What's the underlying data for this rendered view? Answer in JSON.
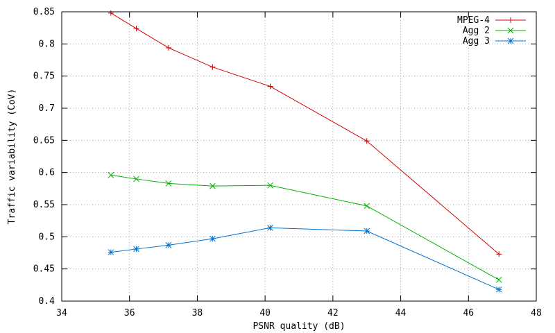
{
  "chart_data": {
    "type": "line",
    "title": "",
    "xlabel": "PSNR quality (dB)",
    "ylabel": "Traffic variability (CoV)",
    "xlim": [
      34,
      48
    ],
    "ylim": [
      0.4,
      0.85
    ],
    "xticks": [
      34,
      36,
      38,
      40,
      42,
      44,
      46,
      48
    ],
    "yticks": [
      0.4,
      0.45,
      0.5,
      0.55,
      0.6,
      0.65,
      0.7,
      0.75,
      0.8,
      0.85
    ],
    "grid": true,
    "legend_position": "top-right",
    "series": [
      {
        "name": "MPEG-4",
        "color": "#d00000",
        "marker": "plus",
        "x": [
          35.45,
          36.2,
          37.15,
          38.45,
          40.15,
          43.0,
          46.9
        ],
        "y": [
          0.848,
          0.824,
          0.794,
          0.764,
          0.734,
          0.649,
          0.473
        ]
      },
      {
        "name": "Agg 2",
        "color": "#00b000",
        "marker": "cross",
        "x": [
          35.45,
          36.2,
          37.15,
          38.45,
          40.15,
          43.0,
          46.9
        ],
        "y": [
          0.596,
          0.59,
          0.583,
          0.579,
          0.58,
          0.548,
          0.433
        ]
      },
      {
        "name": "Agg 3",
        "color": "#0070d0",
        "marker": "star",
        "x": [
          35.45,
          36.2,
          37.15,
          38.45,
          40.15,
          43.0,
          46.9
        ],
        "y": [
          0.476,
          0.481,
          0.487,
          0.497,
          0.514,
          0.509,
          0.418
        ]
      }
    ]
  }
}
